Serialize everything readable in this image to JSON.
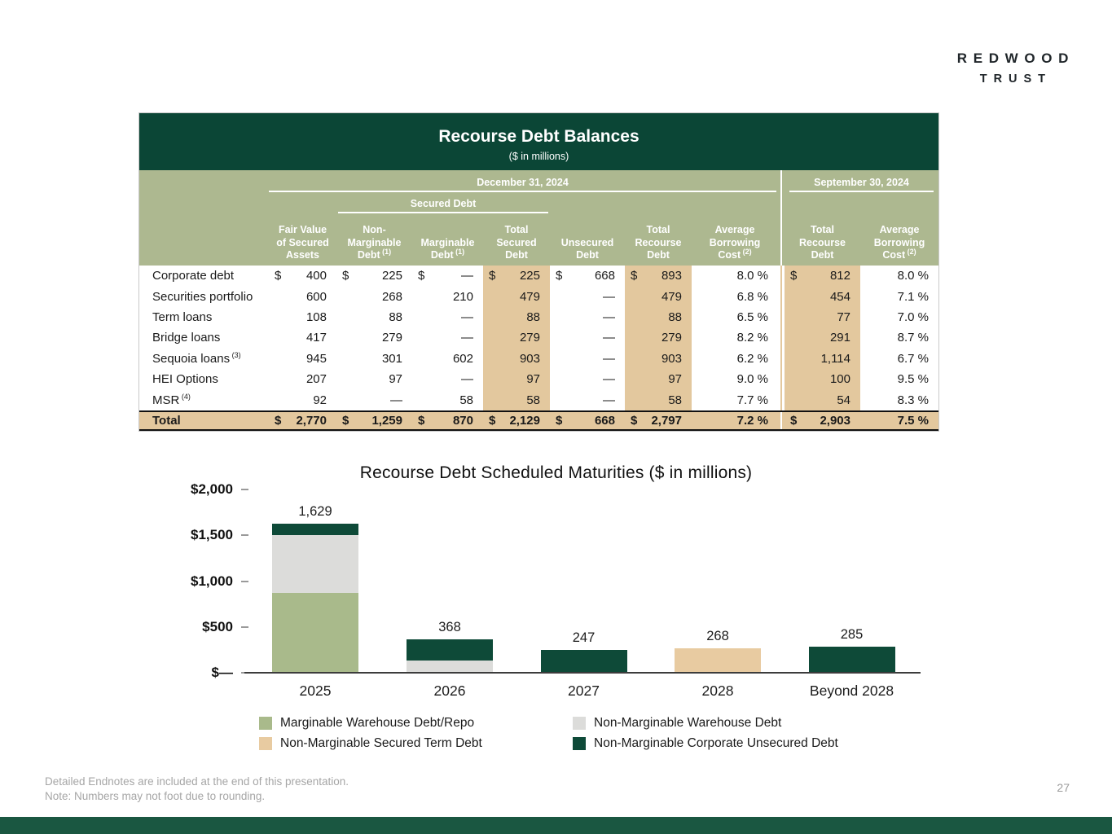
{
  "logo": {
    "line1": "REDWOOD",
    "line2": "TRUST"
  },
  "table": {
    "title": "Recourse Debt Balances",
    "subtitle": "($ in millions)",
    "group_headers": {
      "dec": "December 31, 2024",
      "secured": "Secured Debt",
      "sep": "September 30, 2024"
    },
    "columns": [
      {
        "lines": [
          "Fair Value",
          "of Secured",
          "Assets"
        ]
      },
      {
        "lines": [
          "Non-",
          "Marginable",
          "Debt"
        ],
        "sup": "(1)"
      },
      {
        "lines": [
          "Marginable",
          "Debt"
        ],
        "sup": "(1)"
      },
      {
        "lines": [
          "Total",
          "Secured",
          "Debt"
        ],
        "highlight": true
      },
      {
        "lines": [
          "Unsecured",
          "Debt"
        ]
      },
      {
        "lines": [
          "Total",
          "Recourse",
          "Debt"
        ],
        "highlight": true
      },
      {
        "lines": [
          "Average",
          "Borrowing",
          "Cost"
        ],
        "sup": "(2)"
      },
      {
        "lines": [
          "Total",
          "Recourse",
          "Debt"
        ],
        "highlight": true
      },
      {
        "lines": [
          "Average",
          "Borrowing",
          "Cost"
        ],
        "sup": "(2)"
      }
    ],
    "highlight_value_indexes": [
      3,
      5,
      7
    ],
    "percent_value_indexes": [
      6,
      8
    ],
    "rows": [
      {
        "label": "Corporate debt",
        "dollar": true,
        "values": [
          "400",
          "225",
          "—",
          "225",
          "668",
          "893",
          "8.0 %",
          "812",
          "8.0 %"
        ]
      },
      {
        "label": "Securities portfolio",
        "values": [
          "600",
          "268",
          "210",
          "479",
          "—",
          "479",
          "6.8 %",
          "454",
          "7.1 %"
        ]
      },
      {
        "label": "Term loans",
        "values": [
          "108",
          "88",
          "—",
          "88",
          "—",
          "88",
          "6.5 %",
          "77",
          "7.0 %"
        ]
      },
      {
        "label": "Bridge loans",
        "values": [
          "417",
          "279",
          "—",
          "279",
          "—",
          "279",
          "8.2 %",
          "291",
          "8.7 %"
        ]
      },
      {
        "label": "Sequoia loans",
        "sup": "(3)",
        "values": [
          "945",
          "301",
          "602",
          "903",
          "—",
          "903",
          "6.2 %",
          "1,114",
          "6.7 %"
        ]
      },
      {
        "label": "HEI Options",
        "values": [
          "207",
          "97",
          "—",
          "97",
          "—",
          "97",
          "9.0 %",
          "100",
          "9.5 %"
        ]
      },
      {
        "label": "MSR",
        "sup": "(4)",
        "values": [
          "92",
          "—",
          "58",
          "58",
          "—",
          "58",
          "7.7 %",
          "54",
          "8.3 %"
        ]
      }
    ],
    "total_row": {
      "label": "Total",
      "dollar": true,
      "values": [
        "2,770",
        "1,259",
        "870",
        "2,129",
        "668",
        "2,797",
        "7.2 %",
        "2,903",
        "7.5 %"
      ]
    }
  },
  "chart_data": {
    "type": "bar",
    "stacked": true,
    "title": "Recourse Debt Scheduled Maturities ($ in millions)",
    "categories": [
      "2025",
      "2026",
      "2027",
      "2028",
      "Beyond 2028"
    ],
    "totals": [
      1629,
      368,
      247,
      268,
      285
    ],
    "total_labels": [
      "1,629",
      "368",
      "247",
      "268",
      "285"
    ],
    "series": [
      {
        "name": "Marginable Warehouse Debt/Repo",
        "color": "#a9ba8b",
        "values": [
          870,
          0,
          0,
          0,
          0
        ]
      },
      {
        "name": "Non-Marginable Warehouse Debt",
        "color": "#dcdcda",
        "values": [
          629,
          130,
          0,
          0,
          0
        ]
      },
      {
        "name": "Non-Marginable Secured Term Debt",
        "color": "#e8cba1",
        "values": [
          0,
          0,
          0,
          268,
          0
        ]
      },
      {
        "name": "Non-Marginable Corporate Unsecured Debt",
        "color": "#0e4a38",
        "values": [
          130,
          238,
          247,
          0,
          285
        ]
      }
    ],
    "y_ticks": [
      {
        "value": 2000,
        "label": "$2,000"
      },
      {
        "value": 1500,
        "label": "$1,500"
      },
      {
        "value": 1000,
        "label": "$1,000"
      },
      {
        "value": 500,
        "label": "$500"
      },
      {
        "value": 0,
        "label": "$—"
      }
    ],
    "ylim": [
      0,
      2000
    ],
    "grid": false,
    "legend_position": "bottom"
  },
  "colors": {
    "table_header_green": "#0b4636",
    "table_sage": "#adb890",
    "table_tan": "#e3c89e",
    "bottom_bar_green": "#1a5741"
  },
  "footer": {
    "line1": "Detailed Endnotes are included at the end of this presentation.",
    "line2": "Note: Numbers may not foot due to rounding.",
    "page_number": "27"
  }
}
